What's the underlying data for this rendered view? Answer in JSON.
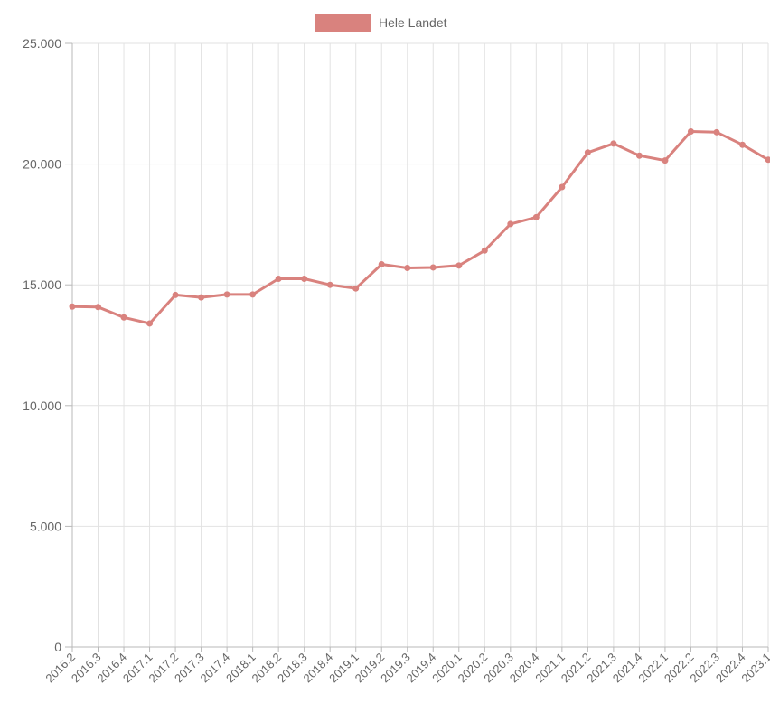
{
  "chart_data": {
    "type": "line",
    "colors": {
      "series": "#d9827e",
      "grid": "#e2e2e2",
      "axis": "#b8b8b8",
      "text": "#666666"
    },
    "legend": {
      "position": "top",
      "entries": [
        "Hele Landet"
      ]
    },
    "grid": true,
    "ylim": [
      0,
      25000
    ],
    "y_ticks": [
      {
        "value": 0,
        "label": "0"
      },
      {
        "value": 5000,
        "label": "5.000"
      },
      {
        "value": 10000,
        "label": "10.000"
      },
      {
        "value": 15000,
        "label": "15.000"
      },
      {
        "value": 20000,
        "label": "20.000"
      },
      {
        "value": 25000,
        "label": "25.000"
      }
    ],
    "categories": [
      "2016.2",
      "2016.3",
      "2016.4",
      "2017.1",
      "2017.2",
      "2017.3",
      "2017.4",
      "2018.1",
      "2018.2",
      "2018.3",
      "2018.4",
      "2019.1",
      "2019.2",
      "2019.3",
      "2019.4",
      "2020.1",
      "2020.2",
      "2020.3",
      "2020.4",
      "2021.1",
      "2021.2",
      "2021.3",
      "2021.4",
      "2022.1",
      "2022.2",
      "2022.3",
      "2022.4",
      "2023.1"
    ],
    "series": [
      {
        "name": "Hele Landet",
        "values": [
          14100,
          14080,
          13650,
          13400,
          14580,
          14480,
          14600,
          14600,
          15250,
          15250,
          15000,
          14850,
          15850,
          15700,
          15720,
          15800,
          16420,
          17520,
          17800,
          19050,
          20480,
          20850,
          20350,
          20150,
          21350,
          21320,
          20800,
          20180
        ]
      }
    ]
  }
}
